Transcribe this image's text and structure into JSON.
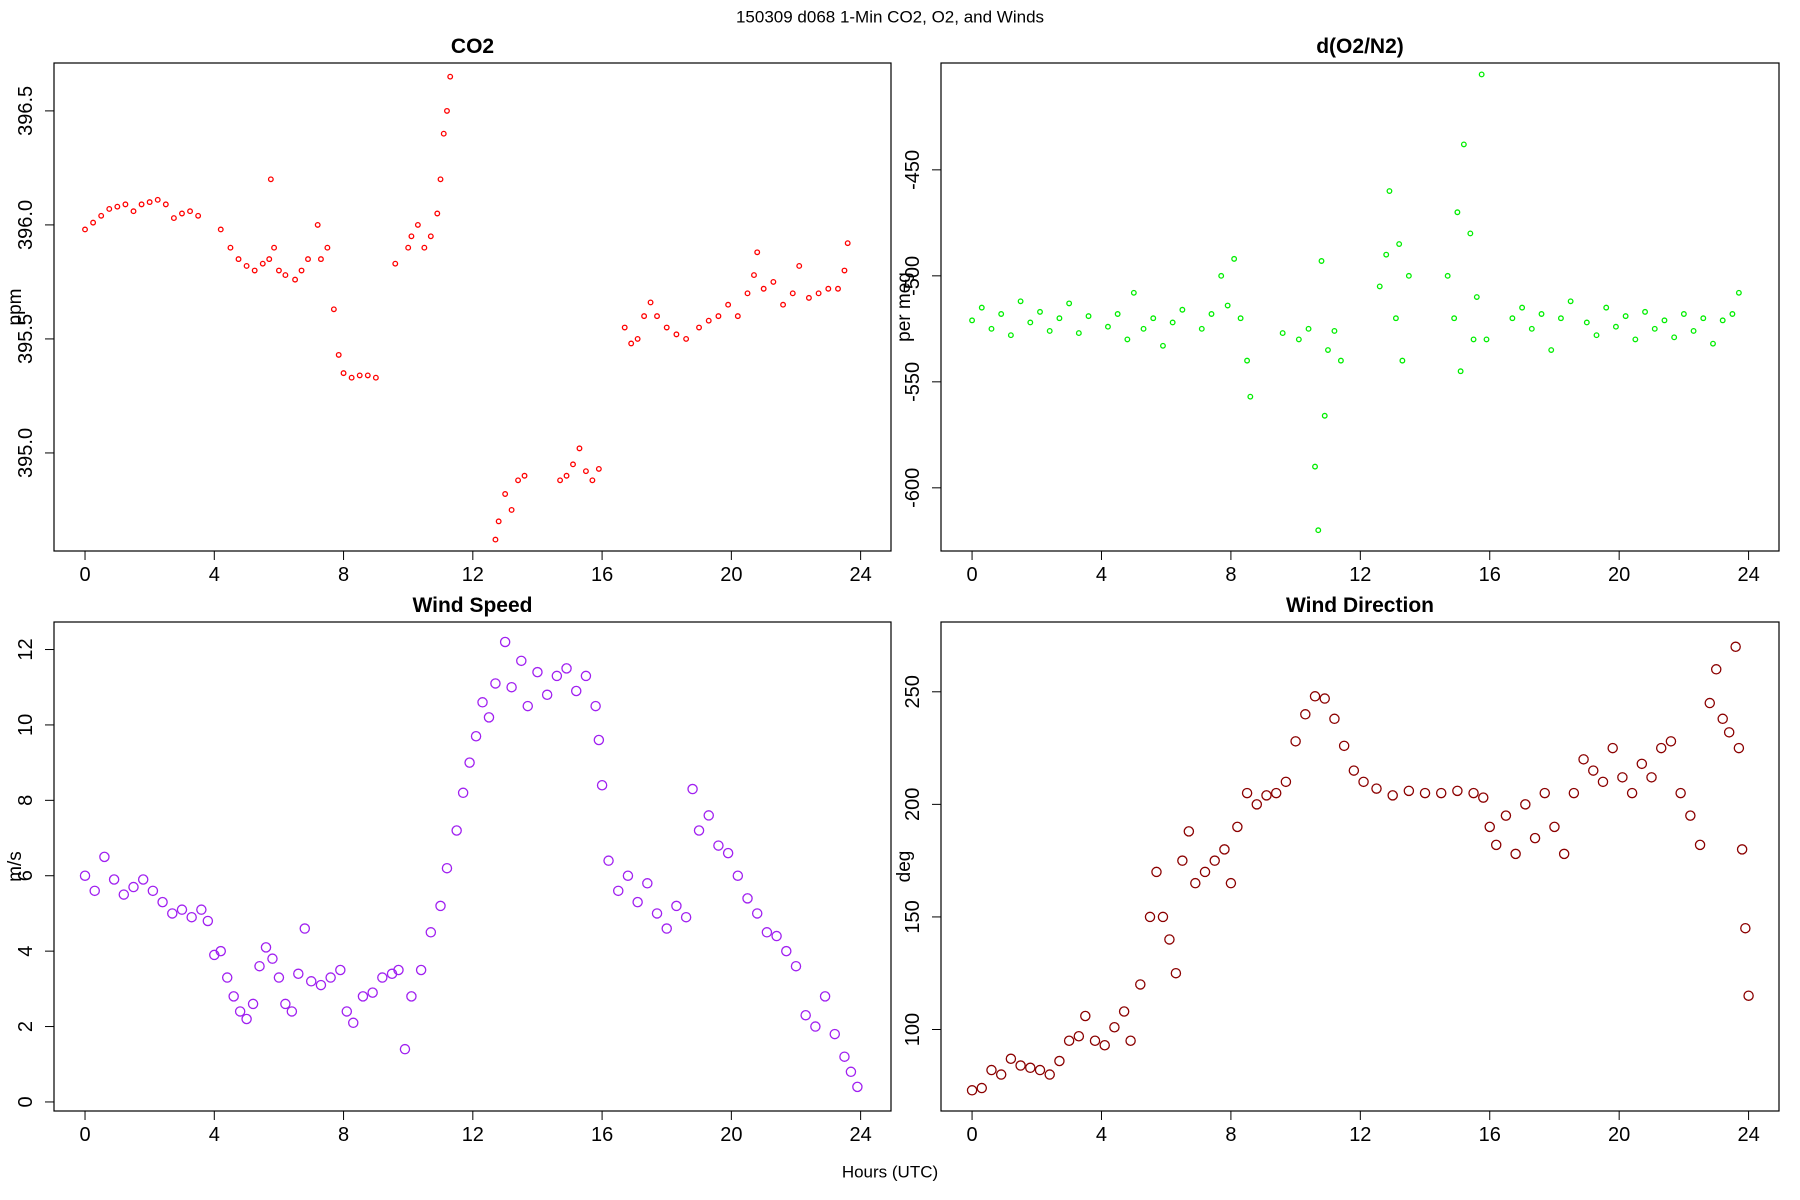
{
  "title": "150309   d068   1-Min CO2, O2, and Winds",
  "xlabel": "Hours (UTC)",
  "chart_data": [
    {
      "type": "scatter",
      "title": "CO2",
      "ylabel": "ppm",
      "color": "#ff0000",
      "xlim": [
        -0.96,
        24.94
      ],
      "ylim": [
        394.57,
        396.71
      ],
      "xticks": [
        0,
        4,
        8,
        12,
        16,
        20,
        24
      ],
      "yticks": [
        {
          "value": 395,
          "label": "395.0"
        },
        395.5,
        {
          "value": 396,
          "label": "396.0"
        },
        396.5
      ],
      "x": [
        0,
        0.25,
        0.5,
        0.75,
        1.0,
        1.25,
        1.5,
        1.75,
        2.0,
        2.25,
        2.5,
        2.75,
        3.0,
        3.25,
        3.5,
        4.2,
        4.5,
        4.75,
        5.0,
        5.25,
        5.5,
        5.7,
        5.75,
        5.85,
        6.0,
        6.2,
        6.5,
        6.7,
        6.9,
        7.2,
        7.3,
        7.5,
        7.7,
        7.85,
        8.0,
        8.25,
        8.5,
        8.75,
        9.0,
        9.6,
        10.0,
        10.1,
        10.3,
        10.5,
        10.7,
        10.9,
        11.0,
        11.1,
        11.2,
        11.3,
        12.7,
        12.8,
        13.0,
        13.2,
        13.4,
        13.6,
        14.7,
        14.9,
        15.1,
        15.3,
        15.5,
        15.7,
        15.9,
        16.7,
        16.9,
        17.1,
        17.3,
        17.5,
        17.7,
        18.0,
        18.3,
        18.6,
        19.0,
        19.3,
        19.6,
        19.9,
        20.2,
        20.5,
        20.7,
        20.8,
        21.0,
        21.3,
        21.6,
        21.9,
        22.1,
        22.4,
        22.7,
        23.0,
        23.3,
        23.5,
        23.6
      ],
      "values": [
        395.98,
        396.01,
        396.04,
        396.07,
        396.08,
        396.09,
        396.06,
        396.09,
        396.1,
        396.11,
        396.09,
        396.03,
        396.05,
        396.06,
        396.04,
        395.98,
        395.9,
        395.85,
        395.82,
        395.8,
        395.83,
        395.85,
        396.2,
        395.9,
        395.8,
        395.78,
        395.76,
        395.8,
        395.85,
        396.0,
        395.85,
        395.9,
        395.63,
        395.43,
        395.35,
        395.33,
        395.34,
        395.34,
        395.33,
        395.83,
        395.9,
        395.95,
        396.0,
        395.9,
        395.95,
        396.05,
        396.2,
        396.4,
        396.5,
        396.65,
        394.62,
        394.7,
        394.82,
        394.75,
        394.88,
        394.9,
        394.88,
        394.9,
        394.95,
        395.02,
        394.92,
        394.88,
        394.93,
        395.55,
        395.48,
        395.5,
        395.6,
        395.66,
        395.6,
        395.55,
        395.52,
        395.5,
        395.55,
        395.58,
        395.6,
        395.65,
        395.6,
        395.7,
        395.78,
        395.88,
        395.72,
        395.75,
        395.65,
        395.7,
        395.82,
        395.68,
        395.7,
        395.72,
        395.72,
        395.8,
        395.92
      ]
    },
    {
      "type": "scatter",
      "title": "d(O2/N2)",
      "ylabel": "per meg",
      "color": "#00ee00",
      "xlim": [
        -0.96,
        24.94
      ],
      "ylim": [
        -629.8,
        -399.6
      ],
      "xticks": [
        0,
        4,
        8,
        12,
        16,
        20,
        24
      ],
      "yticks": [
        -600,
        -550,
        -500,
        -450
      ],
      "x": [
        0,
        0.3,
        0.6,
        0.9,
        1.2,
        1.5,
        1.8,
        2.1,
        2.4,
        2.7,
        3.0,
        3.3,
        3.6,
        4.2,
        4.5,
        4.8,
        5.0,
        5.3,
        5.6,
        5.9,
        6.2,
        6.5,
        7.1,
        7.4,
        7.7,
        7.9,
        8.1,
        8.3,
        8.5,
        8.6,
        9.6,
        10.1,
        10.4,
        10.6,
        10.7,
        10.8,
        10.9,
        11.0,
        11.2,
        11.4,
        12.6,
        12.8,
        12.9,
        13.1,
        13.2,
        13.3,
        13.5,
        14.7,
        14.9,
        15.0,
        15.1,
        15.2,
        15.4,
        15.5,
        15.6,
        15.75,
        15.9,
        16.7,
        17.0,
        17.3,
        17.6,
        17.9,
        18.2,
        18.5,
        19.0,
        19.3,
        19.6,
        19.9,
        20.2,
        20.5,
        20.8,
        21.1,
        21.4,
        21.7,
        22.0,
        22.3,
        22.6,
        22.9,
        23.2,
        23.5,
        23.7
      ],
      "values": [
        -521,
        -515,
        -525,
        -518,
        -528,
        -512,
        -522,
        -517,
        -526,
        -520,
        -513,
        -527,
        -519,
        -524,
        -518,
        -530,
        -508,
        -525,
        -520,
        -533,
        -522,
        -516,
        -525,
        -518,
        -500,
        -514,
        -492,
        -520,
        -540,
        -557,
        -527,
        -530,
        -525,
        -590,
        -620,
        -493,
        -566,
        -535,
        -526,
        -540,
        -505,
        -490,
        -460,
        -520,
        -485,
        -540,
        -500,
        -500,
        -520,
        -470,
        -545,
        -438,
        -480,
        -530,
        -510,
        -405,
        -530,
        -520,
        -515,
        -525,
        -518,
        -535,
        -520,
        -512,
        -522,
        -528,
        -515,
        -524,
        -519,
        -530,
        -517,
        -525,
        -521,
        -529,
        -518,
        -526,
        -520,
        -532,
        -521,
        -518,
        -508
      ]
    },
    {
      "type": "scatter",
      "title": "Wind Speed",
      "ylabel": "m/s",
      "color": "#a020f0",
      "xlim": [
        -0.96,
        24.94
      ],
      "ylim": [
        -0.24,
        12.73
      ],
      "xticks": [
        0,
        4,
        8,
        12,
        16,
        20,
        24
      ],
      "yticks": [
        0,
        2,
        4,
        6,
        8,
        10,
        12
      ],
      "x": [
        0,
        0.3,
        0.6,
        0.9,
        1.2,
        1.5,
        1.8,
        2.1,
        2.4,
        2.7,
        3.0,
        3.3,
        3.6,
        3.8,
        4.0,
        4.2,
        4.4,
        4.6,
        4.8,
        5.0,
        5.2,
        5.4,
        5.6,
        5.8,
        6.0,
        6.2,
        6.4,
        6.6,
        6.8,
        7.0,
        7.3,
        7.6,
        7.9,
        8.1,
        8.3,
        8.6,
        8.9,
        9.2,
        9.5,
        9.7,
        9.9,
        10.1,
        10.4,
        10.7,
        11.0,
        11.2,
        11.5,
        11.7,
        11.9,
        12.1,
        12.3,
        12.5,
        12.7,
        13.0,
        13.2,
        13.5,
        13.7,
        14.0,
        14.3,
        14.6,
        14.9,
        15.2,
        15.5,
        15.8,
        15.9,
        16.0,
        16.2,
        16.5,
        16.8,
        17.1,
        17.4,
        17.7,
        18.0,
        18.3,
        18.6,
        18.8,
        19.0,
        19.3,
        19.6,
        19.9,
        20.2,
        20.5,
        20.8,
        21.1,
        21.4,
        21.7,
        22.0,
        22.3,
        22.6,
        22.9,
        23.2,
        23.5,
        23.7,
        23.9
      ],
      "values": [
        6.0,
        5.6,
        6.5,
        5.9,
        5.5,
        5.7,
        5.9,
        5.6,
        5.3,
        5.0,
        5.1,
        4.9,
        5.1,
        4.8,
        3.9,
        4.0,
        3.3,
        2.8,
        2.4,
        2.2,
        2.6,
        3.6,
        4.1,
        3.8,
        3.3,
        2.6,
        2.4,
        3.4,
        4.6,
        3.2,
        3.1,
        3.3,
        3.5,
        2.4,
        2.1,
        2.8,
        2.9,
        3.3,
        3.4,
        3.5,
        1.4,
        2.8,
        3.5,
        4.5,
        5.2,
        6.2,
        7.2,
        8.2,
        9.0,
        9.7,
        10.6,
        10.2,
        11.1,
        12.2,
        11.0,
        11.7,
        10.5,
        11.4,
        10.8,
        11.3,
        11.5,
        10.9,
        11.3,
        10.5,
        9.6,
        8.4,
        6.4,
        5.6,
        6.0,
        5.3,
        5.8,
        5.0,
        4.6,
        5.2,
        4.9,
        8.3,
        7.2,
        7.6,
        6.8,
        6.6,
        6.0,
        5.4,
        5.0,
        4.5,
        4.4,
        4.0,
        3.6,
        2.3,
        2.0,
        2.8,
        1.8,
        1.2,
        0.8,
        0.4
      ]
    },
    {
      "type": "scatter",
      "title": "Wind Direction",
      "ylabel": "deg",
      "color": "#8b0000",
      "xlim": [
        -0.96,
        24.94
      ],
      "ylim": [
        63.8,
        281
      ],
      "xticks": [
        0,
        4,
        8,
        12,
        16,
        20,
        24
      ],
      "yticks": [
        100,
        150,
        200,
        250
      ],
      "x": [
        0,
        0.3,
        0.6,
        0.9,
        1.2,
        1.5,
        1.8,
        2.1,
        2.4,
        2.7,
        3.0,
        3.3,
        3.5,
        3.8,
        4.1,
        4.4,
        4.7,
        4.9,
        5.2,
        5.5,
        5.7,
        5.9,
        6.1,
        6.3,
        6.5,
        6.7,
        6.9,
        7.2,
        7.5,
        7.8,
        8.0,
        8.2,
        8.5,
        8.8,
        9.1,
        9.4,
        9.7,
        10.0,
        10.3,
        10.6,
        10.9,
        11.2,
        11.5,
        11.8,
        12.1,
        12.5,
        13.0,
        13.5,
        14.0,
        14.5,
        15.0,
        15.5,
        15.8,
        16.0,
        16.2,
        16.5,
        16.8,
        17.1,
        17.4,
        17.7,
        18.0,
        18.3,
        18.6,
        18.9,
        19.2,
        19.5,
        19.8,
        20.1,
        20.4,
        20.7,
        21.0,
        21.3,
        21.6,
        21.9,
        22.2,
        22.5,
        22.8,
        23.0,
        23.2,
        23.4,
        23.6,
        23.7,
        23.8,
        23.9,
        24.0
      ],
      "values": [
        73,
        74,
        82,
        80,
        87,
        84,
        83,
        82,
        80,
        86,
        95,
        97,
        106,
        95,
        93,
        101,
        108,
        95,
        120,
        150,
        170,
        150,
        140,
        125,
        175,
        188,
        165,
        170,
        175,
        180,
        165,
        190,
        205,
        200,
        204,
        205,
        210,
        228,
        240,
        248,
        247,
        238,
        226,
        215,
        210,
        207,
        204,
        206,
        205,
        205,
        206,
        205,
        203,
        190,
        182,
        195,
        178,
        200,
        185,
        205,
        190,
        178,
        205,
        220,
        215,
        210,
        225,
        212,
        205,
        218,
        212,
        225,
        228,
        205,
        195,
        182,
        245,
        260,
        238,
        232,
        270,
        225,
        180,
        145,
        115
      ]
    }
  ]
}
